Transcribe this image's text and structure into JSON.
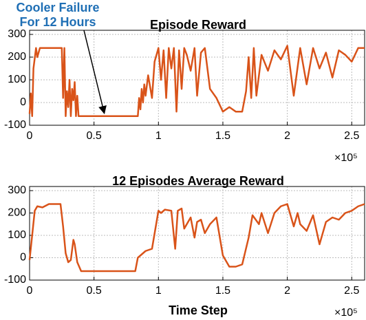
{
  "chart_data": [
    {
      "type": "line",
      "title": "Episode Reward",
      "color": "#d95319",
      "x": [
        0,
        0.01,
        0.02,
        0.03,
        0.05,
        0.06,
        0.08,
        0.1,
        0.15,
        0.2,
        0.25,
        0.26,
        0.27,
        0.28,
        0.29,
        0.3,
        0.31,
        0.32,
        0.33,
        0.34,
        0.35,
        0.36,
        0.37,
        0.38,
        0.4,
        0.6,
        0.8,
        0.84,
        0.85,
        0.86,
        0.87,
        0.88,
        0.89,
        0.9,
        0.92,
        0.95,
        0.97,
        1.0,
        1.02,
        1.04,
        1.06,
        1.08,
        1.1,
        1.12,
        1.14,
        1.16,
        1.18,
        1.2,
        1.22,
        1.25,
        1.28,
        1.3,
        1.33,
        1.36,
        1.4,
        1.45,
        1.5,
        1.55,
        1.6,
        1.65,
        1.68,
        1.7,
        1.72,
        1.74,
        1.76,
        1.8,
        1.85,
        1.9,
        1.95,
        2.0,
        2.05,
        2.1,
        2.15,
        2.2,
        2.25,
        2.3,
        2.35,
        2.4,
        2.45,
        2.5,
        2.55,
        2.6
      ],
      "values": [
        -50,
        40,
        -60,
        150,
        240,
        200,
        240,
        240,
        240,
        240,
        240,
        20,
        240,
        -60,
        50,
        -20,
        100,
        -60,
        60,
        10,
        90,
        -60,
        30,
        -60,
        -60,
        -60,
        -60,
        -60,
        20,
        -30,
        60,
        0,
        80,
        30,
        120,
        20,
        180,
        240,
        100,
        230,
        20,
        240,
        150,
        240,
        -40,
        230,
        60,
        240,
        210,
        140,
        240,
        30,
        220,
        240,
        60,
        20,
        -40,
        -20,
        -40,
        -40,
        50,
        200,
        20,
        240,
        30,
        210,
        140,
        230,
        190,
        250,
        30,
        240,
        80,
        240,
        150,
        220,
        110,
        230,
        210,
        180,
        240,
        240
      ],
      "xlim": [
        0,
        2.6
      ],
      "xticks": [
        0,
        0.5,
        1,
        1.5,
        2,
        2.5
      ],
      "ylim": [
        -100,
        300
      ],
      "yticks": [
        -100,
        0,
        100,
        200,
        300
      ],
      "grid": true,
      "x_multiplier": "×10⁵",
      "annotation": {
        "text": [
          "Cooler Failure",
          "For 12 Hours"
        ],
        "x": 0.58,
        "y": -60,
        "color": "#1f6fb5"
      }
    },
    {
      "type": "line",
      "title": "12 Episodes Average Reward",
      "color": "#d95319",
      "x": [
        0,
        0.02,
        0.04,
        0.06,
        0.1,
        0.15,
        0.2,
        0.24,
        0.26,
        0.28,
        0.3,
        0.32,
        0.34,
        0.35,
        0.37,
        0.4,
        0.5,
        0.6,
        0.7,
        0.82,
        0.84,
        0.86,
        0.9,
        0.95,
        1.0,
        1.02,
        1.05,
        1.1,
        1.13,
        1.15,
        1.18,
        1.2,
        1.25,
        1.28,
        1.3,
        1.33,
        1.36,
        1.4,
        1.45,
        1.5,
        1.55,
        1.6,
        1.65,
        1.7,
        1.73,
        1.78,
        1.8,
        1.85,
        1.9,
        1.95,
        2.0,
        2.05,
        2.08,
        2.1,
        2.15,
        2.2,
        2.25,
        2.3,
        2.35,
        2.4,
        2.45,
        2.5,
        2.55,
        2.6
      ],
      "values": [
        -10,
        100,
        210,
        230,
        225,
        240,
        240,
        240,
        140,
        20,
        -20,
        -10,
        80,
        60,
        -20,
        -60,
        -60,
        -60,
        -60,
        -60,
        0,
        10,
        30,
        40,
        210,
        200,
        215,
        210,
        40,
        210,
        220,
        130,
        180,
        90,
        160,
        170,
        110,
        150,
        180,
        10,
        -40,
        -40,
        -30,
        90,
        190,
        150,
        200,
        110,
        200,
        230,
        240,
        140,
        200,
        150,
        120,
        190,
        60,
        160,
        180,
        170,
        200,
        210,
        230,
        240
      ],
      "xlim": [
        0,
        2.6
      ],
      "xticks": [
        0,
        0.5,
        1,
        1.5,
        2,
        2.5
      ],
      "ylim": [
        -100,
        300
      ],
      "yticks": [
        -100,
        0,
        100,
        200,
        300
      ],
      "grid": true,
      "x_label": "Time Step",
      "x_multiplier": "×10⁵"
    }
  ]
}
